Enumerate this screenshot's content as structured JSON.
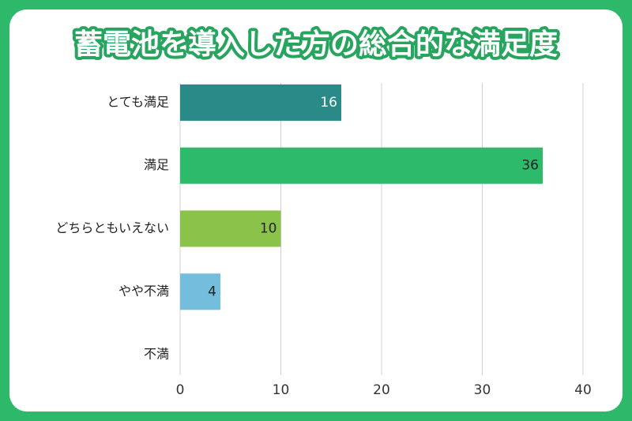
{
  "chart_data": {
    "type": "bar",
    "orientation": "horizontal",
    "title": "蓄電池を導入した方の総合的な満足度",
    "categories": [
      "とても満足",
      "満足",
      "どちらともいえない",
      "やや不満",
      "不満"
    ],
    "values": [
      16,
      36,
      10,
      4,
      0
    ],
    "value_labels": [
      "16",
      "36",
      "10",
      "4",
      null
    ],
    "colors": [
      "#2a8a87",
      "#2dba6b",
      "#8bc34a",
      "#75bddd",
      "#cccccc"
    ],
    "value_label_colors": [
      "#ffffff",
      "#222222",
      "#222222",
      "#222222",
      "#222222"
    ],
    "xlim": [
      0,
      40
    ],
    "xticks": [
      0,
      10,
      20,
      30,
      40
    ],
    "grid": true
  }
}
